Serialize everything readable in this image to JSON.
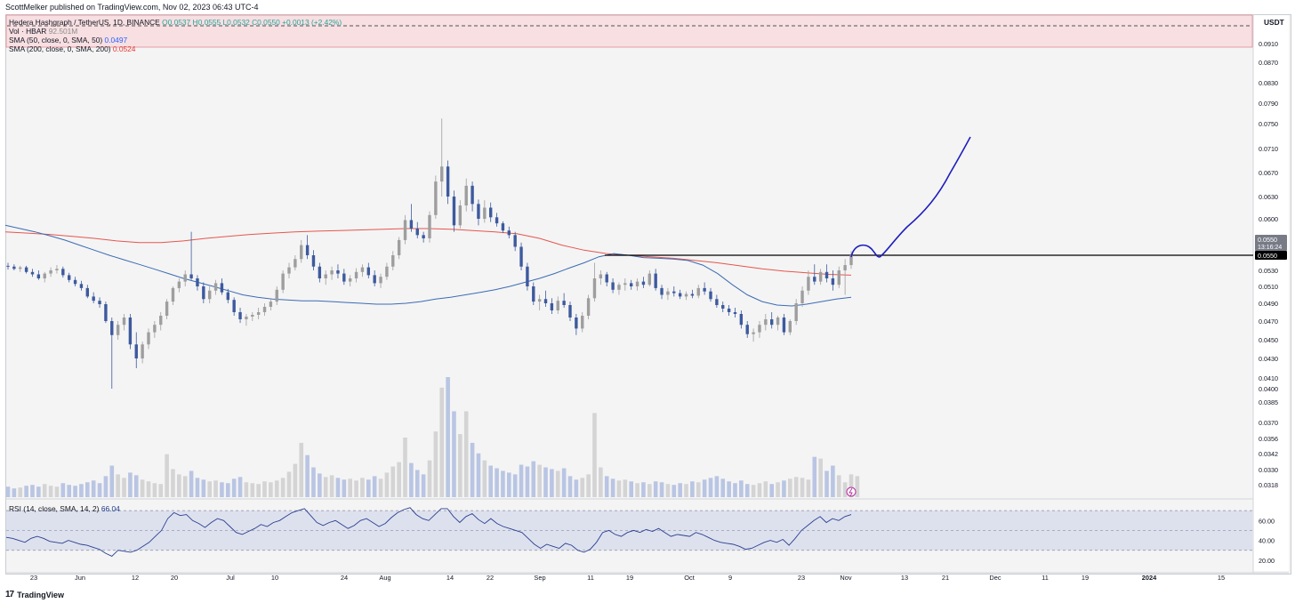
{
  "credit": "ScottMelker published on TradingView.com, Nov 02, 2023 06:43 UTC-4",
  "footer": {
    "logo": "17",
    "brand": "TradingView"
  },
  "currency": "USDT",
  "legend": {
    "symbol_line": "Hedera Hashgraph / TetherUS, 1D, BINANCE",
    "ohlc": "O0.0537 H0.0555 L0.0532 C0.0550 +0.0013 (+2.42%)",
    "vol_label": "Vol · HBAR",
    "vol_value": "92.501M",
    "sma50_label": "SMA (50, close, 0, SMA, 50)",
    "sma50_value": "0.0497",
    "sma200_label": "SMA (200, close, 0, SMA, 200)",
    "sma200_value": "0.0524"
  },
  "rsi": {
    "label": "RSI (14, close, SMA, 14, 2)",
    "value": "66.04"
  },
  "price_tag": {
    "last": "0.0550",
    "countdown": "13:16:24",
    "line_price": "0.0550"
  },
  "colors": {
    "up": "#9e9e9e",
    "down": "#3d5a9e",
    "sma50": "#3b6bb5",
    "sma200": "#e5564e",
    "projection": "#1e1ebe",
    "level": "#000000",
    "vol_up": "#d4d4d4",
    "vol_down": "#b9c5e3",
    "rsi_line": "#2a3f8f",
    "rsi_band": "#dde1ee"
  },
  "chart_data": {
    "type": "candlestick",
    "title": "Hedera Hashgraph / TetherUS, 1D, BINANCE",
    "y_axis_ticks": [
      "0.0910",
      "0.0870",
      "0.0830",
      "0.0790",
      "0.0750",
      "0.0710",
      "0.0670",
      "0.0630",
      "0.0600",
      "0.0570",
      "0.0550",
      "0.0530",
      "0.0510",
      "0.0490",
      "0.0470",
      "0.0450",
      "0.0430",
      "0.0410",
      "0.0400",
      "0.0385",
      "0.0370",
      "0.0356",
      "0.0342",
      "0.0330",
      "0.0318"
    ],
    "x_axis_ticks": [
      "23",
      "Jun",
      "12",
      "20",
      "Jul",
      "10",
      "24",
      "Aug",
      "14",
      "22",
      "Sep",
      "11",
      "19",
      "Oct",
      "9",
      "23",
      "Nov",
      "13",
      "21",
      "Dec",
      "11",
      "19",
      "2024",
      "15"
    ],
    "rsi_ticks": [
      "60.00",
      "40.00",
      "20.00"
    ],
    "log_scale": true,
    "horizontal_level": 0.055,
    "annotation": "hand-drawn projection curve rising from 0.0550 toward ~0.073",
    "last_close": 0.055,
    "sma50_last": 0.0497,
    "sma200_last": 0.0524,
    "rsi_last": 66.04,
    "candles": [
      [
        0.0536,
        0.054,
        0.0531,
        0.0535
      ],
      [
        0.0535,
        0.0538,
        0.053,
        0.0532
      ],
      [
        0.0532,
        0.0536,
        0.0528,
        0.0534
      ],
      [
        0.0534,
        0.0536,
        0.0526,
        0.0528
      ],
      [
        0.0528,
        0.0532,
        0.0522,
        0.0525
      ],
      [
        0.0525,
        0.053,
        0.0518,
        0.052
      ],
      [
        0.052,
        0.0528,
        0.0515,
        0.0526
      ],
      [
        0.0526,
        0.0534,
        0.0522,
        0.053
      ],
      [
        0.053,
        0.0537,
        0.0526,
        0.0532
      ],
      [
        0.0532,
        0.0535,
        0.0521,
        0.0524
      ],
      [
        0.0524,
        0.0527,
        0.0515,
        0.0518
      ],
      [
        0.0518,
        0.0522,
        0.051,
        0.0513
      ],
      [
        0.0513,
        0.0517,
        0.0505,
        0.0508
      ],
      [
        0.0508,
        0.0512,
        0.0496,
        0.0498
      ],
      [
        0.0498,
        0.0503,
        0.049,
        0.0493
      ],
      [
        0.0493,
        0.0497,
        0.0485,
        0.0489
      ],
      [
        0.0489,
        0.0492,
        0.0468,
        0.047
      ],
      [
        0.047,
        0.0474,
        0.04,
        0.0455
      ],
      [
        0.0455,
        0.047,
        0.045,
        0.0466
      ],
      [
        0.0466,
        0.0478,
        0.046,
        0.0474
      ],
      [
        0.0474,
        0.0478,
        0.044,
        0.0445
      ],
      [
        0.0445,
        0.0458,
        0.042,
        0.043
      ],
      [
        0.043,
        0.0448,
        0.0425,
        0.0445
      ],
      [
        0.0445,
        0.0462,
        0.044,
        0.0458
      ],
      [
        0.0458,
        0.047,
        0.0452,
        0.0466
      ],
      [
        0.0466,
        0.048,
        0.046,
        0.0476
      ],
      [
        0.0476,
        0.0495,
        0.0472,
        0.0492
      ],
      [
        0.0492,
        0.051,
        0.0488,
        0.0508
      ],
      [
        0.0508,
        0.052,
        0.0503,
        0.0516
      ],
      [
        0.0516,
        0.053,
        0.051,
        0.0525
      ],
      [
        0.0525,
        0.058,
        0.0518,
        0.052
      ],
      [
        0.052,
        0.0524,
        0.0505,
        0.051
      ],
      [
        0.051,
        0.0515,
        0.049,
        0.0495
      ],
      [
        0.0495,
        0.051,
        0.049,
        0.0505
      ],
      [
        0.0505,
        0.0518,
        0.05,
        0.0514
      ],
      [
        0.0514,
        0.052,
        0.05,
        0.0503
      ],
      [
        0.0503,
        0.0507,
        0.049,
        0.0494
      ],
      [
        0.0494,
        0.0497,
        0.0476,
        0.048
      ],
      [
        0.048,
        0.0485,
        0.0468,
        0.0472
      ],
      [
        0.0472,
        0.0478,
        0.0465,
        0.0475
      ],
      [
        0.0475,
        0.048,
        0.047,
        0.0477
      ],
      [
        0.0477,
        0.0485,
        0.0472,
        0.048
      ],
      [
        0.048,
        0.049,
        0.0476,
        0.0486
      ],
      [
        0.0486,
        0.0496,
        0.0482,
        0.0492
      ],
      [
        0.0492,
        0.051,
        0.0488,
        0.0506
      ],
      [
        0.0506,
        0.053,
        0.0502,
        0.0526
      ],
      [
        0.0526,
        0.054,
        0.052,
        0.0534
      ],
      [
        0.0534,
        0.055,
        0.053,
        0.0545
      ],
      [
        0.0545,
        0.0568,
        0.054,
        0.0562
      ],
      [
        0.0562,
        0.0575,
        0.0545,
        0.055
      ],
      [
        0.055,
        0.0556,
        0.053,
        0.0535
      ],
      [
        0.0535,
        0.054,
        0.0515,
        0.052
      ],
      [
        0.052,
        0.053,
        0.0512,
        0.0525
      ],
      [
        0.0525,
        0.0535,
        0.0518,
        0.053
      ],
      [
        0.053,
        0.0538,
        0.052,
        0.0526
      ],
      [
        0.0526,
        0.0532,
        0.0512,
        0.0516
      ],
      [
        0.0516,
        0.0524,
        0.051,
        0.052
      ],
      [
        0.052,
        0.0533,
        0.0515,
        0.0528
      ],
      [
        0.0528,
        0.0538,
        0.0522,
        0.0534
      ],
      [
        0.0534,
        0.054,
        0.052,
        0.0524
      ],
      [
        0.0524,
        0.053,
        0.051,
        0.0514
      ],
      [
        0.0514,
        0.0526,
        0.0508,
        0.0522
      ],
      [
        0.0522,
        0.054,
        0.0518,
        0.0535
      ],
      [
        0.0535,
        0.0555,
        0.053,
        0.055
      ],
      [
        0.055,
        0.0572,
        0.0545,
        0.0568
      ],
      [
        0.0568,
        0.0605,
        0.0563,
        0.0598
      ],
      [
        0.0598,
        0.062,
        0.058,
        0.0585
      ],
      [
        0.0585,
        0.0595,
        0.057,
        0.0575
      ],
      [
        0.0575,
        0.058,
        0.0565,
        0.057
      ],
      [
        0.057,
        0.061,
        0.0565,
        0.0605
      ],
      [
        0.0605,
        0.0665,
        0.06,
        0.0655
      ],
      [
        0.0655,
        0.076,
        0.063,
        0.068
      ],
      [
        0.068,
        0.069,
        0.062,
        0.063
      ],
      [
        0.063,
        0.064,
        0.058,
        0.059
      ],
      [
        0.059,
        0.0625,
        0.0585,
        0.0618
      ],
      [
        0.0618,
        0.066,
        0.061,
        0.0648
      ],
      [
        0.0648,
        0.0655,
        0.061,
        0.062
      ],
      [
        0.062,
        0.0626,
        0.059,
        0.06
      ],
      [
        0.06,
        0.0625,
        0.0594,
        0.0615
      ],
      [
        0.0615,
        0.0622,
        0.0595,
        0.0602
      ],
      [
        0.0602,
        0.0608,
        0.0588,
        0.0593
      ],
      [
        0.0593,
        0.0596,
        0.0578,
        0.0582
      ],
      [
        0.0582,
        0.0588,
        0.057,
        0.0575
      ],
      [
        0.0575,
        0.058,
        0.0555,
        0.056
      ],
      [
        0.056,
        0.0565,
        0.053,
        0.0535
      ],
      [
        0.0535,
        0.054,
        0.0505,
        0.051
      ],
      [
        0.051,
        0.0515,
        0.0488,
        0.0492
      ],
      [
        0.0492,
        0.05,
        0.0482,
        0.0495
      ],
      [
        0.0495,
        0.0505,
        0.0486,
        0.049
      ],
      [
        0.049,
        0.0496,
        0.0478,
        0.0482
      ],
      [
        0.0482,
        0.0498,
        0.0478,
        0.0493
      ],
      [
        0.0493,
        0.0502,
        0.0485,
        0.0488
      ],
      [
        0.0488,
        0.0492,
        0.047,
        0.0474
      ],
      [
        0.0474,
        0.0478,
        0.0455,
        0.0462
      ],
      [
        0.0462,
        0.048,
        0.0458,
        0.0476
      ],
      [
        0.0476,
        0.05,
        0.0472,
        0.0496
      ],
      [
        0.0496,
        0.054,
        0.0492,
        0.052
      ],
      [
        0.052,
        0.053,
        0.0512,
        0.0525
      ],
      [
        0.0525,
        0.0528,
        0.051,
        0.0515
      ],
      [
        0.0515,
        0.052,
        0.0502,
        0.0506
      ],
      [
        0.0506,
        0.0515,
        0.05,
        0.0512
      ],
      [
        0.0512,
        0.052,
        0.0505,
        0.0514
      ],
      [
        0.0514,
        0.0518,
        0.0506,
        0.051
      ],
      [
        0.051,
        0.052,
        0.0505,
        0.0516
      ],
      [
        0.0516,
        0.0522,
        0.0508,
        0.0512
      ],
      [
        0.0512,
        0.053,
        0.051,
        0.0526
      ],
      [
        0.0526,
        0.0532,
        0.0505,
        0.0508
      ],
      [
        0.0508,
        0.0512,
        0.0495,
        0.05
      ],
      [
        0.05,
        0.0508,
        0.0494,
        0.0504
      ],
      [
        0.0504,
        0.051,
        0.0498,
        0.0502
      ],
      [
        0.0502,
        0.0506,
        0.0495,
        0.0498
      ],
      [
        0.0498,
        0.0504,
        0.0494,
        0.0501
      ],
      [
        0.0501,
        0.0506,
        0.0496,
        0.0499
      ],
      [
        0.0499,
        0.0512,
        0.0496,
        0.0508
      ],
      [
        0.0508,
        0.0515,
        0.05,
        0.0504
      ],
      [
        0.0504,
        0.0508,
        0.0492,
        0.0495
      ],
      [
        0.0495,
        0.05,
        0.0485,
        0.0488
      ],
      [
        0.0488,
        0.0492,
        0.048,
        0.0484
      ],
      [
        0.0484,
        0.0488,
        0.0476,
        0.048
      ],
      [
        0.048,
        0.0485,
        0.0474,
        0.0478
      ],
      [
        0.0478,
        0.0482,
        0.0462,
        0.0466
      ],
      [
        0.0466,
        0.047,
        0.0452,
        0.0456
      ],
      [
        0.0456,
        0.0462,
        0.0448,
        0.0458
      ],
      [
        0.0458,
        0.047,
        0.0452,
        0.0466
      ],
      [
        0.0466,
        0.0478,
        0.046,
        0.0472
      ],
      [
        0.0472,
        0.048,
        0.0462,
        0.0466
      ],
      [
        0.0466,
        0.0476,
        0.046,
        0.0474
      ],
      [
        0.0474,
        0.0478,
        0.0455,
        0.0458
      ],
      [
        0.0458,
        0.0472,
        0.0455,
        0.047
      ],
      [
        0.047,
        0.0495,
        0.0466,
        0.049
      ],
      [
        0.049,
        0.051,
        0.0486,
        0.0505
      ],
      [
        0.0505,
        0.053,
        0.05,
        0.0522
      ],
      [
        0.0522,
        0.0538,
        0.0512,
        0.0516
      ],
      [
        0.0516,
        0.0532,
        0.0512,
        0.0528
      ],
      [
        0.0528,
        0.0538,
        0.0515,
        0.052
      ],
      [
        0.052,
        0.053,
        0.0505,
        0.0512
      ],
      [
        0.0512,
        0.0535,
        0.0508,
        0.053
      ],
      [
        0.053,
        0.0545,
        0.05,
        0.0537
      ],
      [
        0.0537,
        0.0555,
        0.0532,
        0.055
      ]
    ],
    "volume": [
      1.2,
      1.0,
      1.1,
      1.3,
      1.4,
      1.2,
      1.5,
      1.3,
      1.2,
      1.6,
      1.4,
      1.3,
      1.5,
      1.7,
      1.9,
      1.6,
      2.4,
      3.6,
      2.6,
      2.2,
      2.8,
      2.5,
      2.0,
      1.8,
      1.6,
      1.5,
      4.9,
      3.2,
      2.6,
      2.4,
      3.0,
      2.2,
      2.0,
      1.8,
      1.9,
      1.7,
      1.6,
      2.1,
      2.3,
      1.7,
      1.6,
      1.5,
      1.8,
      1.7,
      1.9,
      2.2,
      2.9,
      3.8,
      6.2,
      4.8,
      3.4,
      2.7,
      2.3,
      2.5,
      2.2,
      2.0,
      2.1,
      1.9,
      2.2,
      2.0,
      2.4,
      2.1,
      2.8,
      3.5,
      4.0,
      6.8,
      3.9,
      3.1,
      2.6,
      4.2,
      7.5,
      12.5,
      13.7,
      9.8,
      7.2,
      9.8,
      6.2,
      5.0,
      4.2,
      3.6,
      3.3,
      3.0,
      2.8,
      2.6,
      3.7,
      3.5,
      4.1,
      3.7,
      3.4,
      3.2,
      3.0,
      3.3,
      2.4,
      2.0,
      2.2,
      2.6,
      9.6,
      3.4,
      2.4,
      2.1,
      1.9,
      2.0,
      1.8,
      1.6,
      1.7,
      1.5,
      1.8,
      1.7,
      1.5,
      1.4,
      1.6,
      1.5,
      1.8,
      1.7,
      2.0,
      2.2,
      2.4,
      2.1,
      1.8,
      1.6,
      1.9,
      1.5,
      1.4,
      1.6,
      1.8,
      1.5,
      1.7,
      1.9,
      2.1,
      2.3,
      2.2,
      2.0,
      4.6,
      4.4,
      3.0,
      3.6,
      2.5,
      1.7,
      2.6,
      2.4
    ],
    "rsi_values": [
      43,
      42,
      40,
      38,
      42,
      44,
      42,
      39,
      38,
      37,
      40,
      38,
      36,
      35,
      33,
      31,
      27,
      24,
      30,
      29,
      28,
      30,
      34,
      38,
      44,
      50,
      62,
      68,
      65,
      66,
      60,
      57,
      53,
      58,
      62,
      60,
      54,
      48,
      46,
      49,
      52,
      56,
      54,
      58,
      60,
      64,
      68,
      70,
      72,
      65,
      58,
      55,
      58,
      60,
      56,
      52,
      55,
      60,
      62,
      58,
      54,
      57,
      63,
      68,
      71,
      73,
      66,
      62,
      60,
      66,
      72,
      72,
      64,
      58,
      64,
      67,
      61,
      57,
      62,
      57,
      54,
      52,
      50,
      48,
      42,
      36,
      32,
      36,
      34,
      32,
      37,
      35,
      30,
      28,
      31,
      38,
      48,
      50,
      46,
      44,
      48,
      50,
      48,
      51,
      49,
      52,
      48,
      44,
      46,
      45,
      44,
      48,
      46,
      43,
      40,
      38,
      37,
      36,
      34,
      31,
      32,
      35,
      38,
      40,
      38,
      41,
      35,
      42,
      50,
      55,
      60,
      64,
      58,
      62,
      60,
      64,
      66
    ],
    "sma50": [
      0.059,
      0.0585,
      0.058,
      0.0574,
      0.0568,
      0.0562,
      0.0556,
      0.055,
      0.0544,
      0.0538,
      0.0532,
      0.0526,
      0.052,
      0.0515,
      0.051,
      0.0505,
      0.05,
      0.0497,
      0.0495,
      0.0494,
      0.0493,
      0.0493,
      0.0492,
      0.0491,
      0.049,
      0.0489,
      0.0489,
      0.049,
      0.0492,
      0.0495,
      0.0497,
      0.05,
      0.0503,
      0.0506,
      0.051,
      0.0515,
      0.052,
      0.0526,
      0.0533,
      0.054,
      0.0548,
      0.0552,
      0.055,
      0.0547,
      0.0546,
      0.0545,
      0.0543,
      0.0537,
      0.0526,
      0.0512,
      0.05,
      0.0492,
      0.0488,
      0.0487,
      0.0489,
      0.0492,
      0.0495,
      0.0497
    ],
    "sma200": [
      0.058,
      0.0578,
      0.0576,
      0.0573,
      0.057,
      0.0567,
      0.0565,
      0.0565,
      0.0567,
      0.057,
      0.0573,
      0.0576,
      0.0578,
      0.058,
      0.0581,
      0.0582,
      0.0583,
      0.0584,
      0.0585,
      0.0585,
      0.0584,
      0.0582,
      0.058,
      0.0577,
      0.057,
      0.0562,
      0.0556,
      0.0552,
      0.055,
      0.0548,
      0.0546,
      0.0543,
      0.054,
      0.0536,
      0.0532,
      0.0529,
      0.0527,
      0.0525,
      0.0524
    ]
  }
}
